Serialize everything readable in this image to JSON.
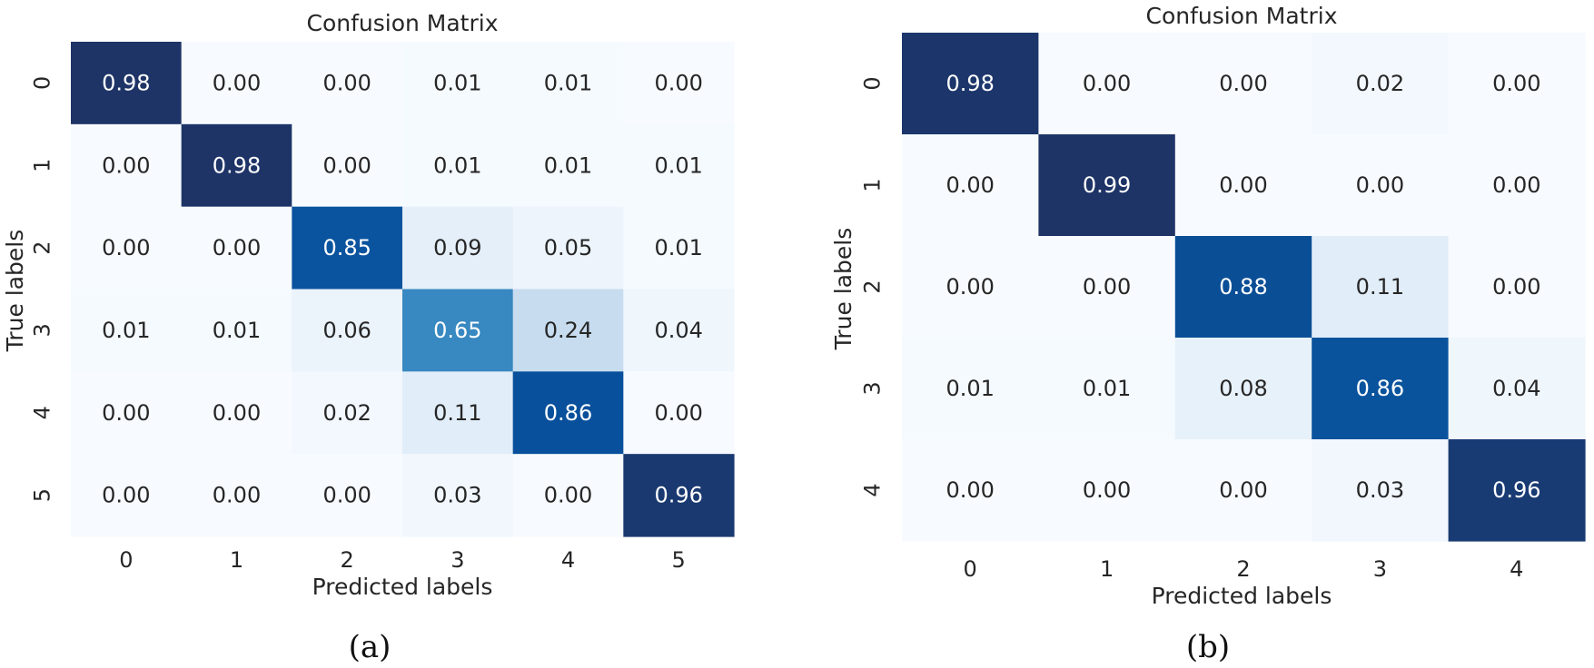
{
  "chart_data": [
    {
      "type": "heatmap",
      "title": "Confusion Matrix",
      "xlabel": "Predicted labels",
      "ylabel": "True labels",
      "caption": "(a)",
      "x_categories": [
        "0",
        "1",
        "2",
        "3",
        "4",
        "5"
      ],
      "y_categories": [
        "0",
        "1",
        "2",
        "3",
        "4",
        "5"
      ],
      "values": [
        [
          0.98,
          0.0,
          0.0,
          0.01,
          0.01,
          0.0
        ],
        [
          0.0,
          0.98,
          0.0,
          0.01,
          0.01,
          0.01
        ],
        [
          0.0,
          0.0,
          0.85,
          0.09,
          0.05,
          0.01
        ],
        [
          0.01,
          0.01,
          0.06,
          0.65,
          0.24,
          0.04
        ],
        [
          0.0,
          0.0,
          0.02,
          0.11,
          0.86,
          0.0
        ],
        [
          0.0,
          0.0,
          0.0,
          0.03,
          0.0,
          0.96
        ]
      ],
      "value_format": "0.00",
      "colormap": "Blues",
      "colorbar": false
    },
    {
      "type": "heatmap",
      "title": "Confusion Matrix",
      "xlabel": "Predicted labels",
      "ylabel": "True labels",
      "caption": "(b)",
      "x_categories": [
        "0",
        "1",
        "2",
        "3",
        "4"
      ],
      "y_categories": [
        "0",
        "1",
        "2",
        "3",
        "4"
      ],
      "values": [
        [
          0.98,
          0.0,
          0.0,
          0.02,
          0.0
        ],
        [
          0.0,
          0.99,
          0.0,
          0.0,
          0.0
        ],
        [
          0.0,
          0.0,
          0.88,
          0.11,
          0.0
        ],
        [
          0.01,
          0.01,
          0.08,
          0.86,
          0.04
        ],
        [
          0.0,
          0.0,
          0.0,
          0.03,
          0.96
        ]
      ],
      "value_format": "0.00",
      "colormap": "Blues",
      "colorbar": false
    }
  ]
}
